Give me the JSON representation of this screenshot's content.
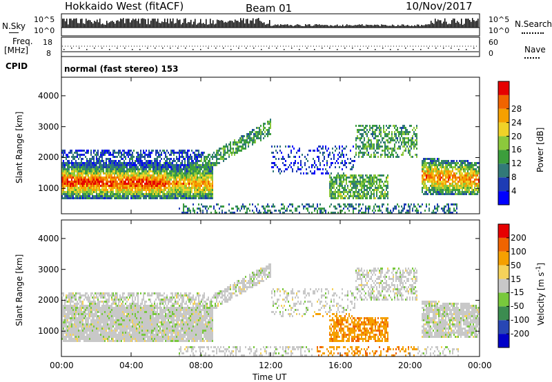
{
  "header": {
    "radar": "Hokkaido West (fitACF)",
    "beam": "Beam 01",
    "date": "10/Nov/2017"
  },
  "summary_labels": {
    "nsky": "N.Sky",
    "nsearch": "N.Search",
    "freq": "Freq.",
    "freq_unit": "[MHz]",
    "nave": "Nave",
    "cpid": "CPID",
    "mode": "normal (fast stereo) 153",
    "nsky_hi": "10^5",
    "nsky_lo": "10^0",
    "freq_hi": "18",
    "freq_lo": "8",
    "nave_hi": "60",
    "nave_lo": "0"
  },
  "chart_data": [
    {
      "type": "heatmap",
      "title": "Power",
      "xlabel": "Time UT",
      "ylabel": "Slant Range [km]",
      "x_ticks": [
        "00:00",
        "04:00",
        "08:00",
        "12:00",
        "16:00",
        "20:00",
        "00:00"
      ],
      "y_ticks": [
        "1000",
        "2000",
        "3000",
        "4000"
      ],
      "ylim": [
        180,
        4600
      ],
      "colorbar": {
        "label": "Power [dB]",
        "ticks": [
          "4",
          "8",
          "12",
          "16",
          "20",
          "24",
          "28"
        ],
        "colors": [
          "#0000ff",
          "#1e3cb4",
          "#327a78",
          "#3c9e3c",
          "#8cc83c",
          "#f0d228",
          "#f5a000",
          "#f06400",
          "#e60000"
        ]
      }
    },
    {
      "type": "heatmap",
      "title": "Velocity",
      "xlabel": "Time UT",
      "ylabel": "Slant Range [km]",
      "x_ticks": [
        "00:00",
        "04:00",
        "08:00",
        "12:00",
        "16:00",
        "20:00",
        "00:00"
      ],
      "y_ticks": [
        "1000",
        "2000",
        "3000",
        "4000"
      ],
      "ylim": [
        180,
        4600
      ],
      "colorbar": {
        "label": "Velocity [m s^-1]",
        "ticks": [
          "200",
          "100",
          "50",
          "15",
          "-15",
          "-50",
          "-100",
          "-200"
        ],
        "colors": [
          "#0000c8",
          "#2846b4",
          "#3c8c50",
          "#78c83c",
          "#c8c8c8",
          "#f5d25a",
          "#f5a000",
          "#f06400",
          "#e60000"
        ]
      }
    }
  ]
}
